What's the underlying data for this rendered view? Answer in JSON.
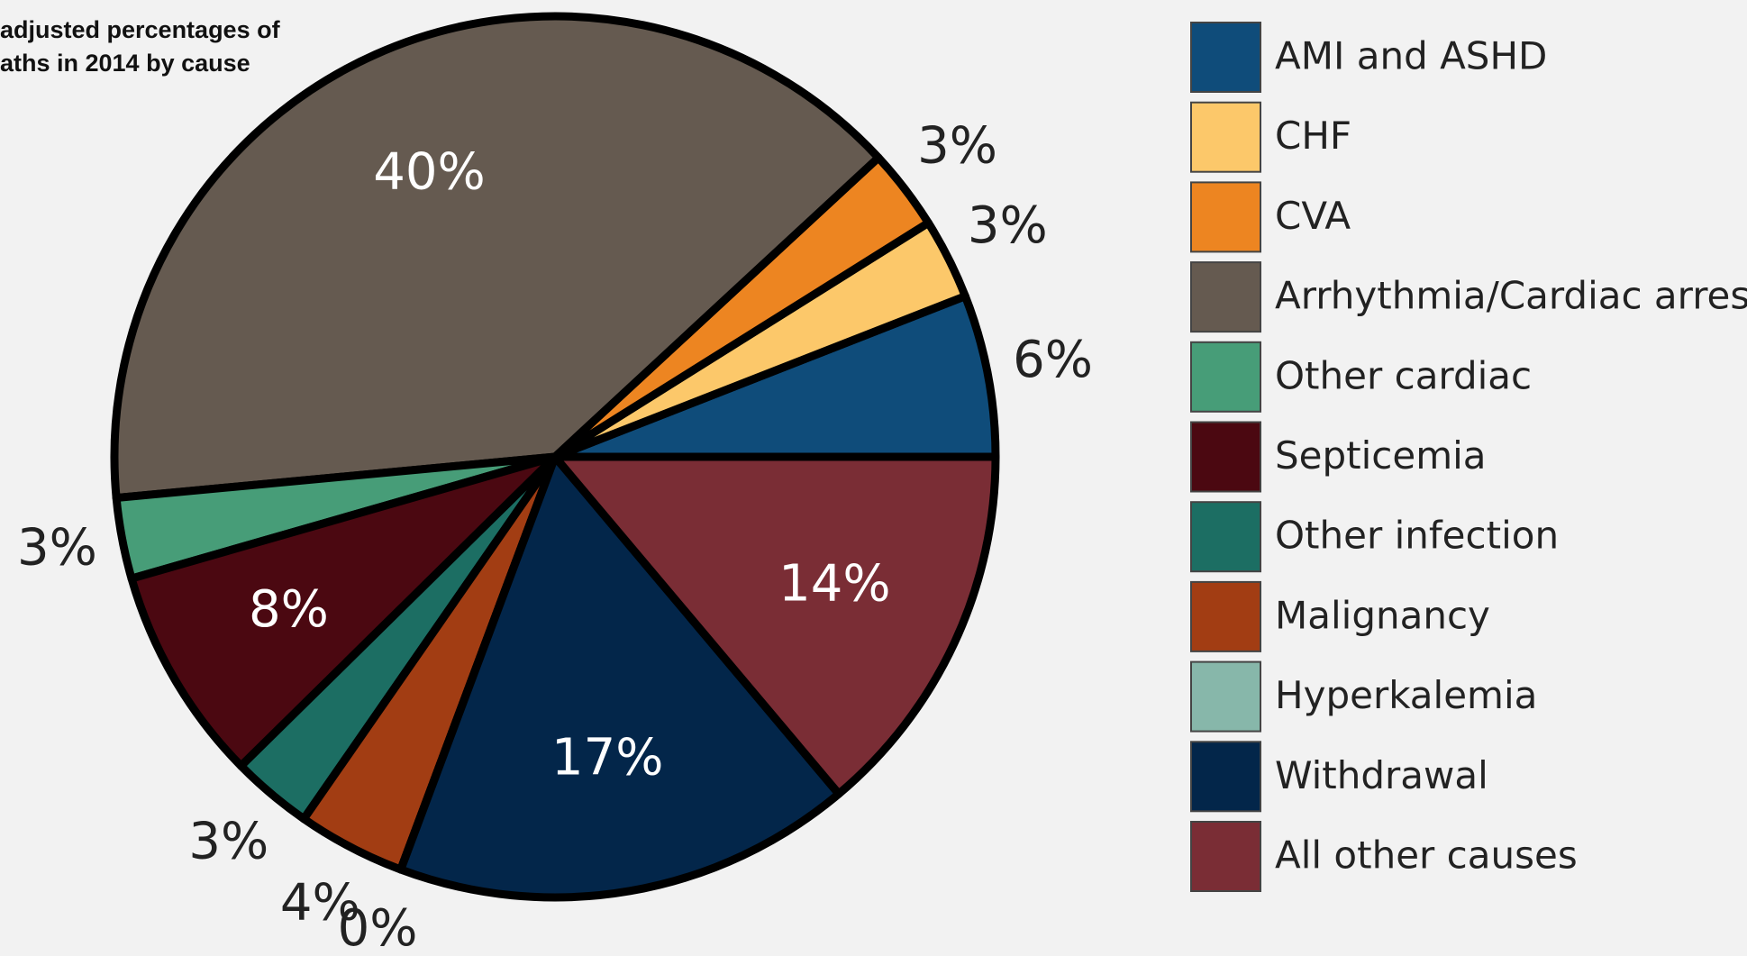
{
  "chart_data": {
    "type": "pie",
    "title": [
      "adjusted percentages of",
      "aths in 2014 by cause"
    ],
    "categories": [
      "AMI and ASHD",
      "CHF",
      "CVA",
      "Arrhythmia/Cardiac arrest",
      "Other cardiac",
      "Septicemia",
      "Other infection",
      "Malignancy",
      "Hyperkalemia",
      "Withdrawal",
      "All other causes"
    ],
    "values": [
      6,
      3,
      3,
      40,
      3,
      8,
      3,
      4,
      0,
      17,
      14
    ],
    "value_labels": [
      "6%",
      "3%",
      "3%",
      "40%",
      "3%",
      "8%",
      "3%",
      "4%",
      "0%",
      "17%",
      "14%"
    ],
    "colors": [
      "#0f4c7a",
      "#fcc86a",
      "#ed8521",
      "#655a50",
      "#479d78",
      "#4b0811",
      "#1c6e63",
      "#a23d13",
      "#87b7aa",
      "#03264a",
      "#7a2d35"
    ],
    "legend": "right"
  }
}
